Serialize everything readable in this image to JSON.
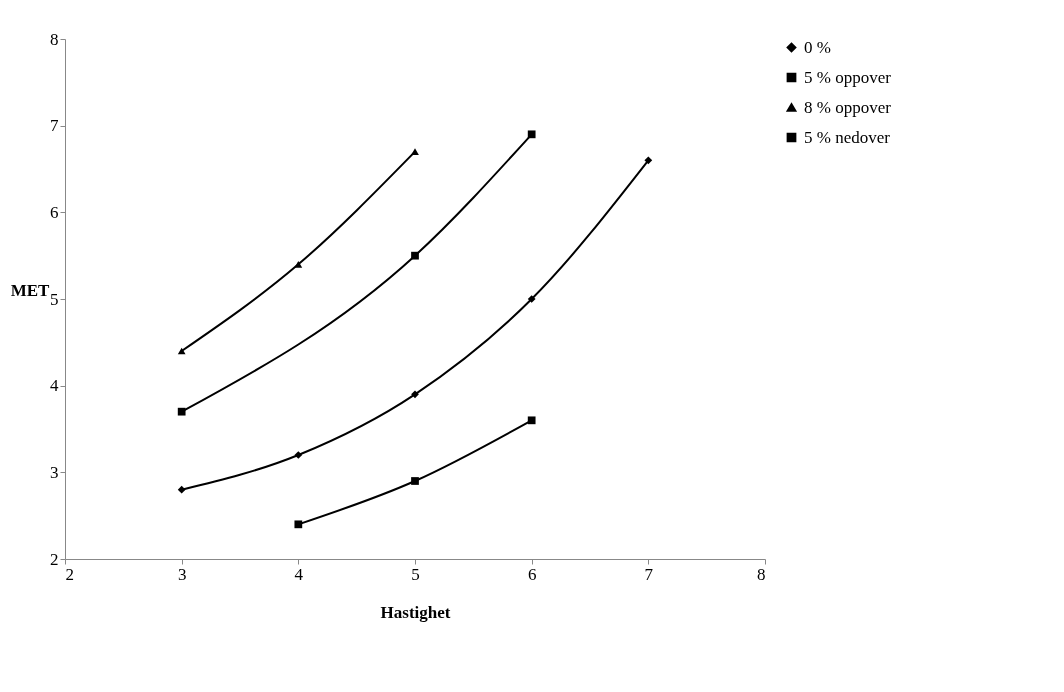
{
  "chart_data": {
    "type": "line",
    "xlabel": "Hastighet",
    "ylabel": "MET",
    "xlim": [
      2,
      8
    ],
    "xticks": [
      2,
      3,
      4,
      5,
      6,
      7,
      8
    ],
    "ylim": [
      2,
      8
    ],
    "yticks": [
      2,
      3,
      4,
      5,
      6,
      7,
      8
    ],
    "grid": false,
    "legend": "right",
    "line_style": "solid",
    "series": [
      {
        "name": "0 %",
        "color": "#000000",
        "marker": "diamond",
        "x": [
          3,
          4,
          5,
          6,
          7
        ],
        "values": [
          2.8,
          3.2,
          3.9,
          5.0,
          6.6
        ]
      },
      {
        "name": "5 % oppover",
        "color": "#000000",
        "marker": "square",
        "x": [
          3,
          5,
          6
        ],
        "values": [
          3.7,
          5.5,
          6.9
        ]
      },
      {
        "name": "8 % oppover",
        "color": "#000000",
        "marker": "triangle",
        "x": [
          3,
          4,
          5
        ],
        "values": [
          4.4,
          5.4,
          6.7
        ]
      },
      {
        "name": "5 % nedover",
        "color": "#000000",
        "marker": "square",
        "x": [
          4,
          5,
          6
        ],
        "values": [
          2.4,
          2.9,
          3.6
        ]
      }
    ]
  }
}
